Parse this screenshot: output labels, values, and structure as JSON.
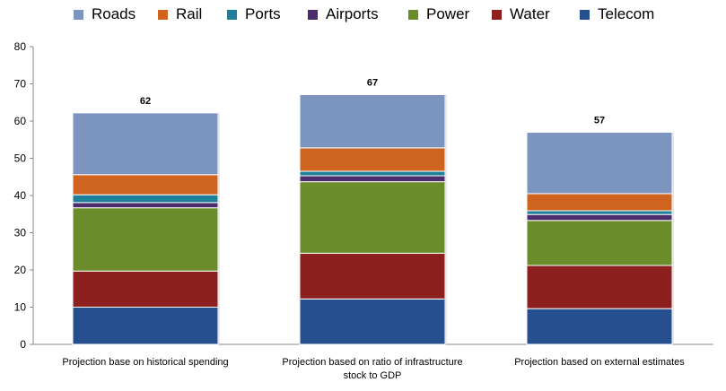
{
  "chart_data": {
    "type": "bar",
    "stacked": true,
    "categories": [
      "Projection base on historical spending",
      "Projection based on ratio of infrastructure stock to GDP",
      "Projection based on external estimates"
    ],
    "category_lines": [
      [
        "Projection base on historical spending"
      ],
      [
        "Projection based on ratio of infrastructure",
        "stock to GDP"
      ],
      [
        "Projection based on external estimates"
      ]
    ],
    "series": [
      {
        "name": "Telecom",
        "color": "#254f8e",
        "values": [
          10.0,
          12.2,
          9.6
        ]
      },
      {
        "name": "Water",
        "color": "#8e1f1f",
        "values": [
          9.7,
          12.3,
          11.6
        ]
      },
      {
        "name": "Power",
        "color": "#6b8c2a",
        "values": [
          17.0,
          19.2,
          12.1
        ]
      },
      {
        "name": "Airports",
        "color": "#4b2d6e",
        "values": [
          1.4,
          1.6,
          1.6
        ]
      },
      {
        "name": "Ports",
        "color": "#1e7f9a",
        "values": [
          2.1,
          1.2,
          1.0
        ]
      },
      {
        "name": "Rail",
        "color": "#cf6420",
        "values": [
          5.4,
          6.3,
          4.6
        ]
      },
      {
        "name": "Roads",
        "color": "#7b95c0",
        "values": [
          16.6,
          14.3,
          16.5
        ]
      }
    ],
    "legend_order": [
      "Roads",
      "Rail",
      "Ports",
      "Airports",
      "Power",
      "Water",
      "Telecom"
    ],
    "totals": [
      "62",
      "67",
      "57"
    ],
    "yticks": [
      "0",
      "10",
      "20",
      "30",
      "40",
      "50",
      "60",
      "70",
      "80"
    ],
    "ylim": [
      0,
      80
    ],
    "legend_position": "top",
    "grid": false
  }
}
